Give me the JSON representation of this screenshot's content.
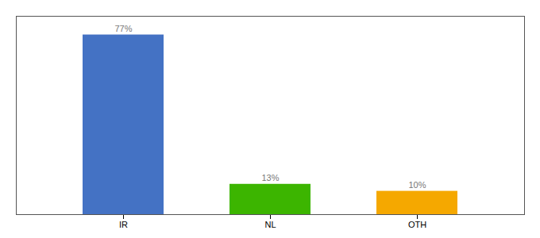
{
  "chart_data": {
    "type": "bar",
    "categories": [
      "IR",
      "NL",
      "OTH"
    ],
    "values": [
      77,
      13,
      10
    ],
    "colors": [
      "#4472c4",
      "#3cb500",
      "#f5a800"
    ],
    "value_labels": [
      "77%",
      "13%",
      "10%"
    ],
    "data_labels": true,
    "ylim": [
      0,
      85
    ],
    "tick_labels": "x",
    "grid": false
  }
}
